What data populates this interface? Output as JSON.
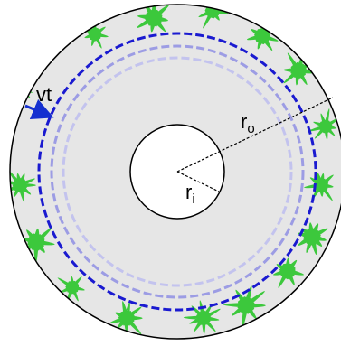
{
  "labels": {
    "velocity": "vt",
    "outer_radius": {
      "base": "r",
      "subscript": "o"
    },
    "inner_radius": {
      "base": "r",
      "subscript": "i"
    }
  }
}
